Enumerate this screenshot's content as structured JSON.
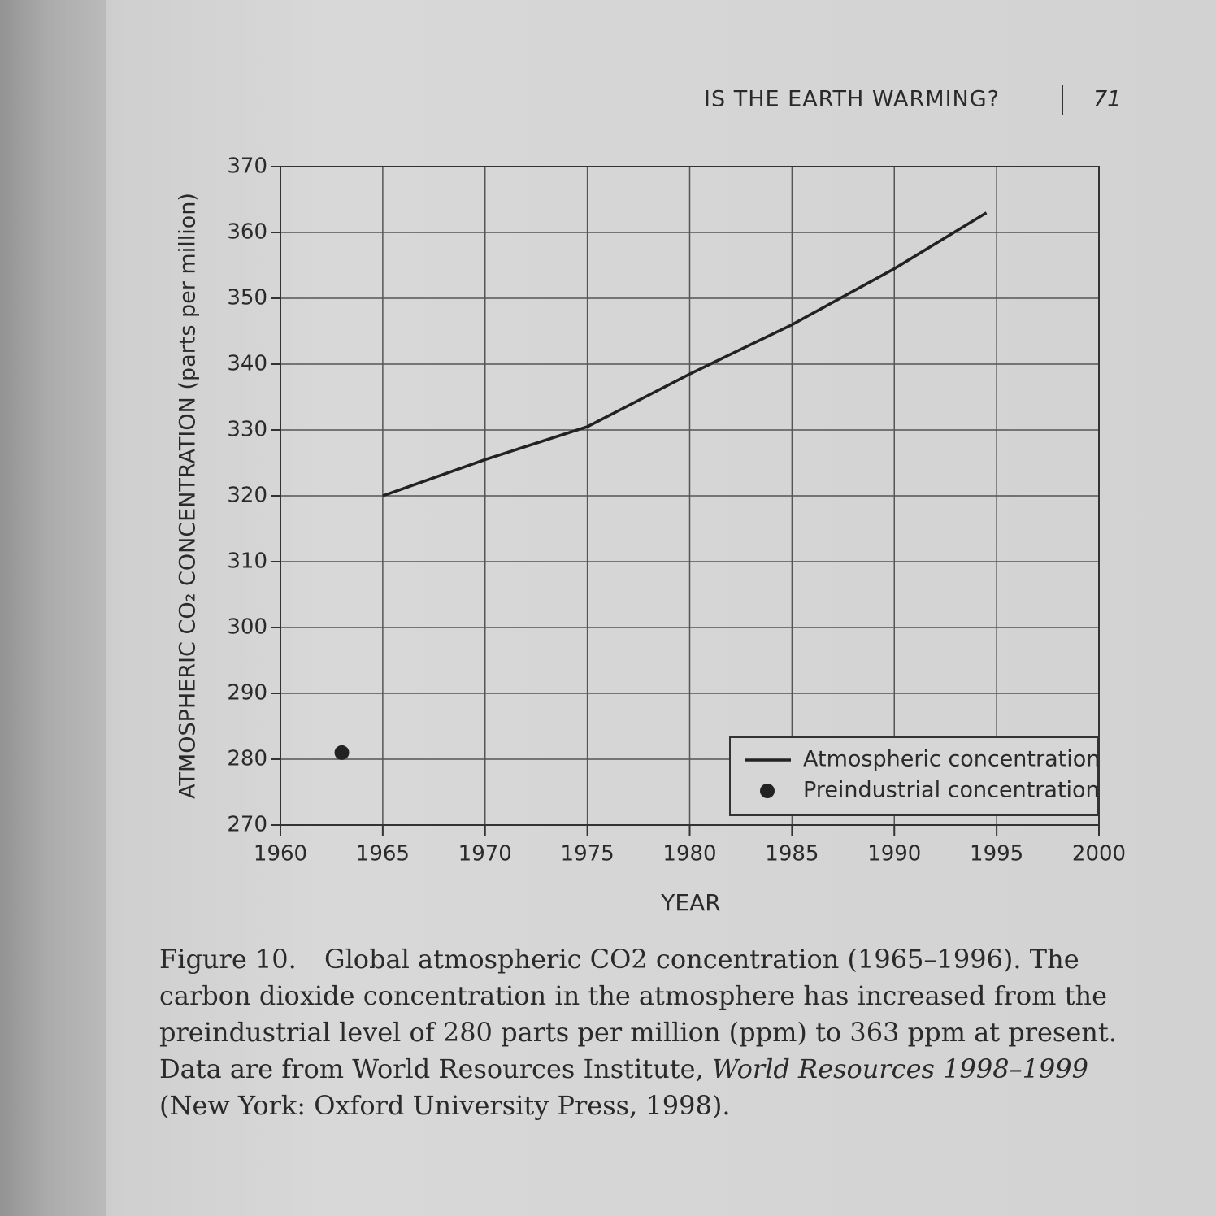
{
  "page": {
    "running_head": "IS THE EARTH WARMING?",
    "page_number": "71"
  },
  "chart_data": {
    "type": "line",
    "x_label": "YEAR",
    "y_label": "ATMOSPHERIC CO₂ CONCENTRATION (parts per million)",
    "series": [
      {
        "name": "Atmospheric concentration",
        "type": "line",
        "color": "#222222",
        "x": [
          1965,
          1970,
          1975,
          1980,
          1985,
          1990,
          1994.5
        ],
        "values": [
          320,
          325.5,
          330.5,
          338.5,
          346,
          354.5,
          363
        ]
      },
      {
        "name": "Preindustrial concentration",
        "type": "scatter",
        "color": "#222222",
        "x": [
          1963
        ],
        "values": [
          281
        ]
      }
    ],
    "xlim": [
      1960,
      2000
    ],
    "xticks": [
      1960,
      1965,
      1970,
      1975,
      1980,
      1985,
      1990,
      1995,
      2000
    ],
    "ylim": [
      270,
      370
    ],
    "yticks": [
      270,
      280,
      290,
      300,
      310,
      320,
      330,
      340,
      350,
      360,
      370
    ],
    "grid": true,
    "legend": "lower right"
  },
  "caption": {
    "label": "Figure 10.",
    "text": "Global atmospheric CO2 concentration (1965–1996). The carbon dioxide concentration in the atmosphere has increased from the preindustrial level of 280 parts per million (ppm) to 363 ppm at present. Data are from World Resources Institute,",
    "title": "World Resources 1998–1999",
    "text_end": "(New York: Oxford University Press, 1998)."
  }
}
